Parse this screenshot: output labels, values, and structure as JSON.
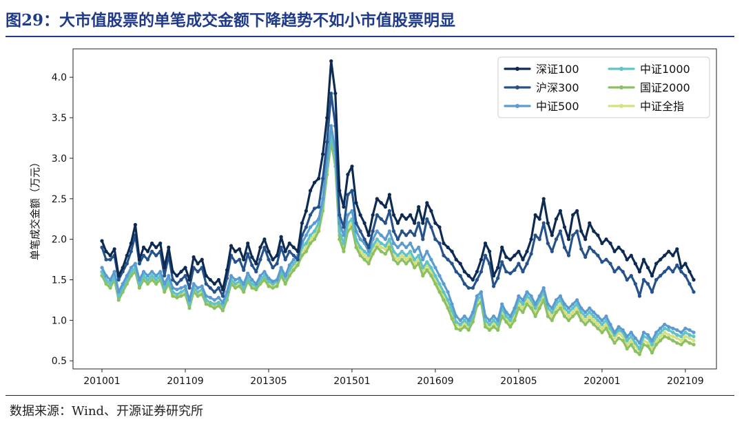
{
  "figure": {
    "title": "图29：大市值股票的单笔成交金额下降趋势不如小市值股票明显",
    "source": "数据来源：Wind、开源证券研究所"
  },
  "chart_data": {
    "type": "line",
    "ylabel": "单笔成交金额（万元）",
    "xlabel": "",
    "ylim": [
      0.4,
      4.35
    ],
    "yticks": [
      0.5,
      1.0,
      1.5,
      2.0,
      2.5,
      3.0,
      3.5,
      4.0
    ],
    "ytick_labels": [
      "0.5",
      "1.0",
      "1.5",
      "2.0",
      "2.5",
      "3.0",
      "3.5",
      "4.0"
    ],
    "xticks": [
      "201001",
      "201109",
      "201305",
      "201501",
      "201609",
      "201805",
      "202001",
      "202109",
      "202305"
    ],
    "x_start": "2010-01",
    "x_step_months": 1,
    "legend_position": "top-right",
    "legend_columns": 2,
    "grid": false,
    "series": [
      {
        "name": "深证100",
        "color": "#0d2a52",
        "values": [
          1.98,
          1.85,
          1.8,
          1.88,
          1.55,
          1.65,
          1.8,
          1.95,
          2.18,
          1.75,
          1.9,
          1.85,
          1.95,
          1.9,
          1.95,
          1.65,
          1.9,
          1.6,
          1.55,
          1.6,
          1.65,
          1.5,
          1.78,
          1.7,
          1.75,
          1.55,
          1.5,
          1.45,
          1.5,
          1.38,
          1.62,
          1.92,
          1.85,
          1.88,
          1.75,
          1.95,
          1.78,
          1.7,
          1.9,
          2.0,
          1.85,
          1.75,
          1.8,
          2.03,
          1.85,
          1.95,
          1.9,
          1.85,
          2.2,
          2.35,
          2.6,
          2.7,
          2.75,
          3.05,
          3.5,
          4.2,
          3.8,
          2.6,
          2.4,
          2.8,
          2.9,
          2.45,
          2.3,
          2.2,
          2.05,
          2.3,
          2.5,
          2.45,
          2.4,
          2.55,
          2.3,
          2.2,
          2.3,
          2.25,
          2.3,
          2.2,
          2.4,
          2.2,
          2.45,
          2.35,
          2.2,
          2.15,
          1.95,
          1.9,
          1.85,
          1.75,
          1.7,
          1.6,
          1.55,
          1.5,
          1.6,
          1.75,
          1.95,
          1.85,
          1.55,
          1.65,
          1.9,
          1.78,
          1.75,
          1.8,
          1.85,
          1.75,
          1.85,
          2.0,
          2.3,
          2.25,
          2.5,
          2.2,
          2.05,
          2.25,
          2.35,
          2.15,
          2.0,
          2.3,
          2.35,
          2.1,
          2.0,
          2.2,
          2.1,
          2.05,
          1.95,
          2.0,
          1.95,
          1.85,
          1.9,
          1.85,
          1.75,
          1.8,
          1.7,
          1.6,
          1.75,
          1.65,
          1.55,
          1.7,
          1.75,
          1.8,
          1.85,
          1.8,
          1.88,
          1.65,
          1.7,
          1.6,
          1.5
        ]
      },
      {
        "name": "沪深300",
        "color": "#25528a",
        "values": [
          1.9,
          1.75,
          1.75,
          1.8,
          1.5,
          1.6,
          1.7,
          1.85,
          2.05,
          1.7,
          1.8,
          1.75,
          1.85,
          1.8,
          1.85,
          1.55,
          1.8,
          1.5,
          1.45,
          1.5,
          1.55,
          1.4,
          1.65,
          1.6,
          1.65,
          1.45,
          1.4,
          1.35,
          1.4,
          1.3,
          1.52,
          1.8,
          1.72,
          1.75,
          1.62,
          1.82,
          1.68,
          1.6,
          1.75,
          1.9,
          1.75,
          1.65,
          1.7,
          1.9,
          1.75,
          1.85,
          1.8,
          1.75,
          2.05,
          2.15,
          2.3,
          2.38,
          2.4,
          2.75,
          3.2,
          3.8,
          3.4,
          2.3,
          2.15,
          2.55,
          2.6,
          2.2,
          2.1,
          2.0,
          1.9,
          2.1,
          2.3,
          2.25,
          2.2,
          2.35,
          2.1,
          2.0,
          2.1,
          2.05,
          2.1,
          2.05,
          2.2,
          2.0,
          2.25,
          2.15,
          2.0,
          1.95,
          1.8,
          1.75,
          1.7,
          1.6,
          1.55,
          1.45,
          1.4,
          1.4,
          1.5,
          1.6,
          1.8,
          1.7,
          1.42,
          1.52,
          1.72,
          1.6,
          1.58,
          1.62,
          1.7,
          1.6,
          1.7,
          1.82,
          2.05,
          2.0,
          2.2,
          1.95,
          1.85,
          2.0,
          2.1,
          1.9,
          1.8,
          2.05,
          2.1,
          1.88,
          1.78,
          1.9,
          1.85,
          1.8,
          1.72,
          1.75,
          1.7,
          1.6,
          1.65,
          1.6,
          1.5,
          1.55,
          1.45,
          1.3,
          1.5,
          1.45,
          1.35,
          1.5,
          1.55,
          1.6,
          1.65,
          1.6,
          1.68,
          1.6,
          1.55,
          1.45,
          1.35
        ]
      },
      {
        "name": "中证500",
        "color": "#5b9bd0",
        "values": [
          1.65,
          1.55,
          1.5,
          1.6,
          1.35,
          1.45,
          1.55,
          1.65,
          1.7,
          1.5,
          1.6,
          1.55,
          1.6,
          1.55,
          1.6,
          1.45,
          1.55,
          1.4,
          1.38,
          1.4,
          1.42,
          1.25,
          1.45,
          1.4,
          1.42,
          1.3,
          1.28,
          1.25,
          1.28,
          1.22,
          1.35,
          1.55,
          1.5,
          1.52,
          1.45,
          1.58,
          1.5,
          1.45,
          1.55,
          1.6,
          1.52,
          1.48,
          1.5,
          1.65,
          1.55,
          1.68,
          1.75,
          1.8,
          1.95,
          2.05,
          2.15,
          2.2,
          2.25,
          2.5,
          3.0,
          3.4,
          3.1,
          2.2,
          2.05,
          2.3,
          2.35,
          2.1,
          2.0,
          1.95,
          1.85,
          2.0,
          2.1,
          2.05,
          2.0,
          2.1,
          1.95,
          1.9,
          1.95,
          1.9,
          1.95,
          1.85,
          1.9,
          1.75,
          1.85,
          1.75,
          1.65,
          1.55,
          1.45,
          1.35,
          1.2,
          1.05,
          1.0,
          1.05,
          1.0,
          1.1,
          1.3,
          1.35,
          1.05,
          1.0,
          1.05,
          1.0,
          1.2,
          1.1,
          1.05,
          1.15,
          1.3,
          1.25,
          1.35,
          1.3,
          1.2,
          1.3,
          1.4,
          1.2,
          1.15,
          1.25,
          1.3,
          1.2,
          1.15,
          1.2,
          1.25,
          1.15,
          1.1,
          1.15,
          1.1,
          1.05,
          1.0,
          1.05,
          0.95,
          0.85,
          0.92,
          0.88,
          0.8,
          0.85,
          0.78,
          0.72,
          0.85,
          0.82,
          0.75,
          0.85,
          0.9,
          0.95,
          0.92,
          0.9,
          0.88,
          0.85,
          0.9,
          0.88,
          0.85
        ]
      },
      {
        "name": "中证1000",
        "color": "#5fc3c9",
        "values": [
          1.6,
          1.5,
          1.45,
          1.55,
          1.3,
          1.4,
          1.5,
          1.6,
          1.65,
          1.45,
          1.55,
          1.5,
          1.55,
          1.5,
          1.55,
          1.4,
          1.5,
          1.35,
          1.32,
          1.35,
          1.38,
          1.2,
          1.4,
          1.35,
          1.38,
          1.25,
          1.22,
          1.2,
          1.22,
          1.18,
          1.3,
          1.5,
          1.45,
          1.48,
          1.4,
          1.52,
          1.45,
          1.42,
          1.5,
          1.55,
          1.48,
          1.45,
          1.48,
          1.6,
          1.52,
          1.62,
          1.7,
          1.75,
          1.9,
          1.95,
          2.05,
          2.1,
          2.2,
          2.45,
          2.9,
          3.3,
          3.0,
          2.1,
          1.95,
          2.2,
          2.25,
          2.0,
          1.9,
          1.85,
          1.8,
          1.92,
          2.0,
          1.95,
          1.92,
          2.0,
          1.85,
          1.8,
          1.85,
          1.8,
          1.85,
          1.75,
          1.8,
          1.65,
          1.72,
          1.65,
          1.55,
          1.45,
          1.35,
          1.25,
          1.12,
          0.98,
          0.95,
          1.0,
          0.95,
          1.05,
          1.25,
          1.3,
          1.0,
          0.95,
          1.0,
          0.95,
          1.15,
          1.05,
          1.0,
          1.1,
          1.25,
          1.2,
          1.3,
          1.25,
          1.15,
          1.25,
          1.35,
          1.15,
          1.1,
          1.2,
          1.25,
          1.15,
          1.1,
          1.15,
          1.2,
          1.1,
          1.05,
          1.1,
          1.05,
          1.0,
          0.95,
          1.0,
          0.9,
          0.82,
          0.88,
          0.85,
          0.75,
          0.8,
          0.72,
          0.65,
          0.8,
          0.78,
          0.7,
          0.8,
          0.85,
          0.9,
          0.88,
          0.85,
          0.82,
          0.8,
          0.85,
          0.82,
          0.8
        ]
      },
      {
        "name": "国证2000",
        "color": "#8cc060",
        "values": [
          1.55,
          1.45,
          1.4,
          1.5,
          1.25,
          1.35,
          1.45,
          1.55,
          1.6,
          1.4,
          1.5,
          1.45,
          1.5,
          1.45,
          1.5,
          1.35,
          1.45,
          1.3,
          1.28,
          1.3,
          1.32,
          1.15,
          1.35,
          1.3,
          1.32,
          1.2,
          1.18,
          1.15,
          1.18,
          1.12,
          1.25,
          1.45,
          1.4,
          1.42,
          1.35,
          1.48,
          1.4,
          1.38,
          1.45,
          1.5,
          1.42,
          1.4,
          1.42,
          1.55,
          1.45,
          1.55,
          1.62,
          1.68,
          1.8,
          1.85,
          1.95,
          2.0,
          2.1,
          2.35,
          2.8,
          3.2,
          2.9,
          2.0,
          1.85,
          2.1,
          2.15,
          1.9,
          1.8,
          1.75,
          1.7,
          1.82,
          1.9,
          1.85,
          1.82,
          1.9,
          1.75,
          1.7,
          1.75,
          1.7,
          1.75,
          1.65,
          1.7,
          1.55,
          1.62,
          1.55,
          1.45,
          1.35,
          1.25,
          1.15,
          1.02,
          0.9,
          0.88,
          0.92,
          0.88,
          0.98,
          1.18,
          1.22,
          0.92,
          0.88,
          0.92,
          0.88,
          1.05,
          0.98,
          0.92,
          1.0,
          1.15,
          1.1,
          1.2,
          1.15,
          1.05,
          1.15,
          1.25,
          1.05,
          1.0,
          1.1,
          1.15,
          1.05,
          1.0,
          1.05,
          1.1,
          1.0,
          0.95,
          1.0,
          0.95,
          0.9,
          0.85,
          0.9,
          0.8,
          0.72,
          0.78,
          0.75,
          0.65,
          0.7,
          0.62,
          0.58,
          0.7,
          0.68,
          0.6,
          0.7,
          0.75,
          0.8,
          0.78,
          0.75,
          0.72,
          0.7,
          0.75,
          0.72,
          0.7
        ]
      },
      {
        "name": "中证全指",
        "color": "#d6e07e",
        "values": [
          1.58,
          1.48,
          1.43,
          1.52,
          1.28,
          1.38,
          1.48,
          1.58,
          1.62,
          1.42,
          1.52,
          1.48,
          1.52,
          1.48,
          1.52,
          1.38,
          1.48,
          1.32,
          1.3,
          1.32,
          1.35,
          1.18,
          1.38,
          1.32,
          1.35,
          1.22,
          1.2,
          1.18,
          1.2,
          1.15,
          1.28,
          1.48,
          1.42,
          1.45,
          1.38,
          1.5,
          1.42,
          1.4,
          1.48,
          1.52,
          1.45,
          1.42,
          1.45,
          1.58,
          1.48,
          1.58,
          1.65,
          1.72,
          1.85,
          1.9,
          2.0,
          2.05,
          2.15,
          2.4,
          2.85,
          3.25,
          2.95,
          2.05,
          1.9,
          2.15,
          2.2,
          1.95,
          1.85,
          1.8,
          1.75,
          1.88,
          1.95,
          1.9,
          1.88,
          1.95,
          1.8,
          1.75,
          1.8,
          1.75,
          1.8,
          1.7,
          1.75,
          1.6,
          1.68,
          1.6,
          1.5,
          1.4,
          1.3,
          1.2,
          1.08,
          0.95,
          0.92,
          0.96,
          0.92,
          1.02,
          1.22,
          1.26,
          0.96,
          0.92,
          0.96,
          0.92,
          1.1,
          1.02,
          0.96,
          1.05,
          1.2,
          1.15,
          1.25,
          1.2,
          1.1,
          1.2,
          1.3,
          1.1,
          1.05,
          1.15,
          1.2,
          1.1,
          1.05,
          1.1,
          1.15,
          1.05,
          1.0,
          1.05,
          1.0,
          0.95,
          0.9,
          0.95,
          0.85,
          0.78,
          0.84,
          0.8,
          0.7,
          0.75,
          0.68,
          0.62,
          0.75,
          0.72,
          0.66,
          0.75,
          0.8,
          0.85,
          0.82,
          0.8,
          0.78,
          0.75,
          0.8,
          0.78,
          0.75
        ]
      }
    ]
  }
}
